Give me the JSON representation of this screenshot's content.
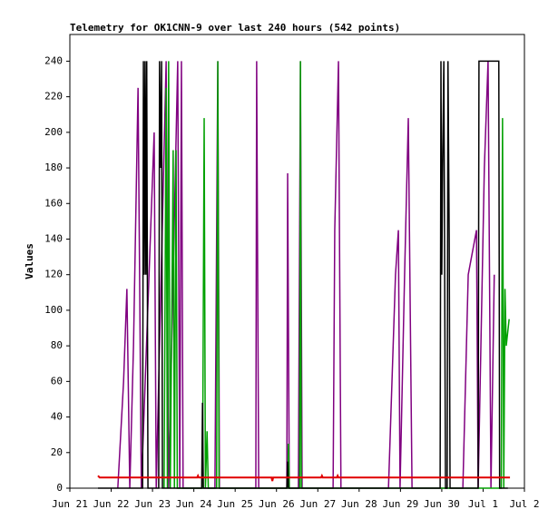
{
  "chart_data": {
    "type": "line",
    "title": "Telemetry for OK1CNN-9 over last 240 hours (542 points)",
    "ylabel": "Values",
    "xlim": [
      0,
      11
    ],
    "ylim": [
      0,
      255
    ],
    "xticks": [
      {
        "value": 0,
        "label": "Jun 21"
      },
      {
        "value": 1,
        "label": "Jun 22"
      },
      {
        "value": 2,
        "label": "Jun 23"
      },
      {
        "value": 3,
        "label": "Jun 24"
      },
      {
        "value": 4,
        "label": "Jun 25"
      },
      {
        "value": 5,
        "label": "Jun 26"
      },
      {
        "value": 6,
        "label": "Jun 27"
      },
      {
        "value": 7,
        "label": "Jun 28"
      },
      {
        "value": 8,
        "label": "Jun 29"
      },
      {
        "value": 9,
        "label": "Jun 30"
      },
      {
        "value": 10,
        "label": "Jul 1"
      },
      {
        "value": 11,
        "label": "Jul 2"
      }
    ],
    "yticks": [
      0,
      20,
      40,
      60,
      80,
      100,
      120,
      140,
      160,
      180,
      200,
      220,
      240
    ],
    "series": [
      {
        "color": "#800080",
        "x": [
          1.16,
          1.3,
          1.38,
          1.45,
          1.54,
          1.65,
          1.73,
          2.04,
          2.09,
          2.33,
          2.39,
          2.61,
          2.66,
          2.7,
          2.74,
          3.51,
          3.58,
          3.62,
          4.5,
          4.52,
          4.57,
          5.25,
          5.27,
          5.31,
          5.53,
          5.58,
          5.62,
          6.37,
          6.41,
          6.5,
          6.56,
          7.71,
          7.88,
          7.95,
          7.99,
          8.1,
          8.19,
          8.28,
          9.51,
          9.64,
          9.84,
          9.88,
          10.03,
          10.12,
          10.19,
          10.27
        ],
        "values": [
          0,
          60,
          112,
          0,
          80,
          225,
          0,
          200,
          0,
          240,
          0,
          240,
          0,
          240,
          0,
          0,
          240,
          0,
          0,
          240,
          0,
          0,
          177,
          0,
          0,
          240,
          0,
          0,
          145,
          240,
          0,
          0,
          120,
          145,
          0,
          120,
          208,
          0,
          0,
          120,
          145,
          0,
          180,
          240,
          0,
          120
        ]
      },
      {
        "color": "#00a000",
        "x": [
          2.28,
          2.33,
          2.36,
          2.39,
          2.43,
          2.5,
          2.53,
          2.57,
          2.6,
          3.21,
          3.25,
          3.28,
          3.32,
          3.35,
          3.55,
          3.58,
          3.61,
          5.27,
          5.29,
          5.31,
          5.56,
          5.58,
          5.6,
          10.44,
          10.47,
          10.5,
          10.53,
          10.56,
          10.63
        ],
        "values": [
          0,
          225,
          0,
          240,
          0,
          190,
          0,
          190,
          0,
          0,
          208,
          0,
          32,
          0,
          0,
          240,
          0,
          0,
          25,
          0,
          0,
          240,
          0,
          0,
          208,
          0,
          112,
          80,
          95
        ]
      },
      {
        "color": "#000000",
        "x": [
          0.68,
          1.76,
          1.78,
          1.8,
          1.82,
          1.84,
          1.86,
          1.89,
          2.15,
          2.17,
          2.2,
          2.22,
          2.24,
          3.19,
          3.21,
          3.23,
          5.25,
          5.27,
          5.29,
          8.96,
          8.98,
          9.0,
          9.02,
          9.05,
          9.07,
          9.09,
          9.13,
          9.15,
          9.18,
          9.2,
          9.88,
          9.9,
          10.38,
          10.4,
          10.6
        ],
        "values": [
          0,
          0,
          240,
          120,
          240,
          120,
          240,
          0,
          0,
          240,
          180,
          240,
          0,
          0,
          48,
          0,
          0,
          15,
          0,
          0,
          240,
          120,
          180,
          240,
          120,
          0,
          0,
          240,
          140,
          0,
          0,
          240,
          240,
          0,
          0
        ]
      },
      {
        "color": "#e00000",
        "x": [
          0.68,
          0.72,
          3.08,
          3.1,
          3.12,
          4.88,
          4.9,
          4.92,
          6.08,
          6.1,
          6.12,
          6.46,
          6.48,
          6.5,
          10.65
        ],
        "values": [
          7,
          6,
          6,
          7,
          6,
          6,
          4,
          6,
          6,
          7,
          6,
          6,
          7,
          6,
          6
        ]
      }
    ]
  }
}
